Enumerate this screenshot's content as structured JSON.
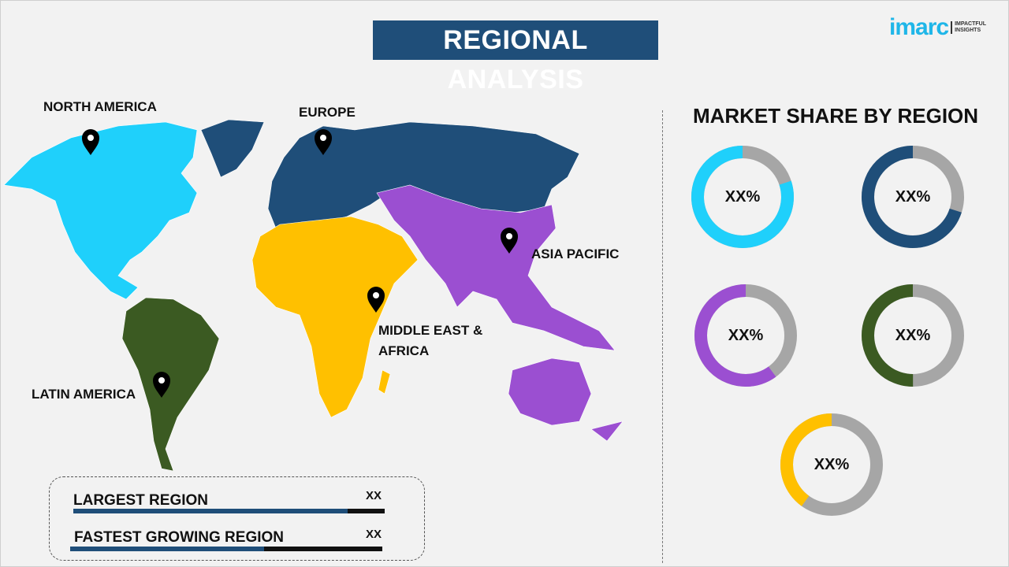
{
  "header": {
    "title": "REGIONAL ANALYSIS",
    "logo": {
      "word": "imarc",
      "tagline_1": "IMPACTFUL",
      "tagline_2": "INSIGHTS"
    }
  },
  "map": {
    "regions": [
      {
        "name": "NORTH AMERICA",
        "color": "#1fd0fb"
      },
      {
        "name": "EUROPE",
        "color": "#1f4e79"
      },
      {
        "name": "ASIA PACIFIC",
        "color": "#9b4fd1"
      },
      {
        "name": "MIDDLE EAST &",
        "name_line2": "AFRICA",
        "color": "#ffc000"
      },
      {
        "name": "LATIN AMERICA",
        "color": "#3b5a22"
      }
    ],
    "pin_icon": "map-pin-icon"
  },
  "market_share": {
    "title": "MARKET SHARE BY REGION",
    "remainder_color": "#a6a6a6",
    "donuts": [
      {
        "region": "NORTH AMERICA",
        "label": "XX%",
        "color": "#1fd0fb",
        "fraction": 0.8
      },
      {
        "region": "EUROPE",
        "label": "XX%",
        "color": "#1f4e79",
        "fraction": 0.7
      },
      {
        "region": "ASIA PACIFIC",
        "label": "XX%",
        "color": "#9b4fd1",
        "fraction": 0.6
      },
      {
        "region": "LATIN AMERICA",
        "label": "XX%",
        "color": "#3b5a22",
        "fraction": 0.5
      },
      {
        "region": "MIDDLE EAST & AFRICA",
        "label": "XX%",
        "color": "#ffc000",
        "fraction": 0.4
      }
    ]
  },
  "summary": {
    "rows": [
      {
        "label": "LARGEST REGION",
        "value": "XX",
        "fill": 0.88
      },
      {
        "label": "FASTEST GROWING REGION",
        "value": "XX",
        "fill": 0.62
      }
    ]
  }
}
